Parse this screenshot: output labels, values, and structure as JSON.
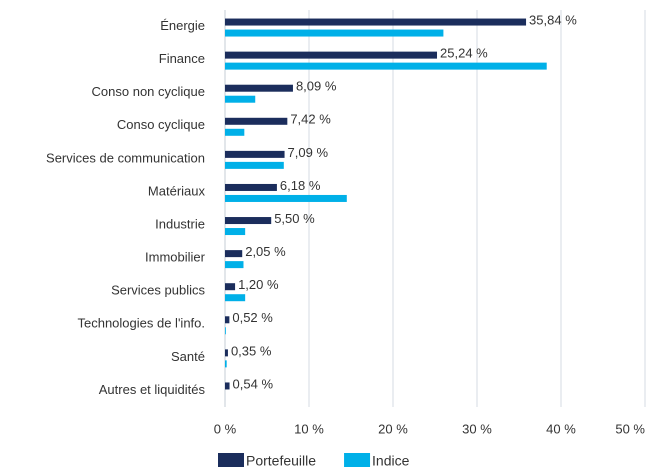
{
  "chart_data": {
    "type": "bar",
    "orientation": "horizontal",
    "categories": [
      "Énergie",
      "Finance",
      "Conso non cyclique",
      "Conso cyclique",
      "Services de communication",
      "Matériaux",
      "Industrie",
      "Immobilier",
      "Services publics",
      "Technologies de l'info.",
      "Santé",
      "Autres et liquidités"
    ],
    "series": [
      {
        "name": "Portefeuille",
        "color": "#1b2d5c",
        "values": [
          35.84,
          25.24,
          8.09,
          7.42,
          7.09,
          6.18,
          5.5,
          2.05,
          1.2,
          0.52,
          0.35,
          0.54
        ],
        "value_labels": [
          "35,84 %",
          "25,24 %",
          "8,09 %",
          "7,42 %",
          "7,09 %",
          "6,18 %",
          "5,50 %",
          "2,05 %",
          "1,20 %",
          "0,52 %",
          "0,35 %",
          "0,54 %"
        ]
      },
      {
        "name": "Indice",
        "color": "#00b0e8",
        "values": [
          26,
          38.3,
          3.6,
          2.3,
          7.0,
          14.5,
          2.4,
          2.2,
          2.4,
          0.1,
          0.2,
          0
        ]
      }
    ],
    "xlim": [
      0,
      50
    ],
    "xticks": [
      {
        "value": 0,
        "label": "0 %"
      },
      {
        "value": 10,
        "label": "10 %"
      },
      {
        "value": 20,
        "label": "20 %"
      },
      {
        "value": 30,
        "label": "30 %"
      },
      {
        "value": 40,
        "label": "40 %"
      },
      {
        "value": 50,
        "label": "50 %"
      }
    ],
    "grid": true,
    "legend": "bottom"
  }
}
